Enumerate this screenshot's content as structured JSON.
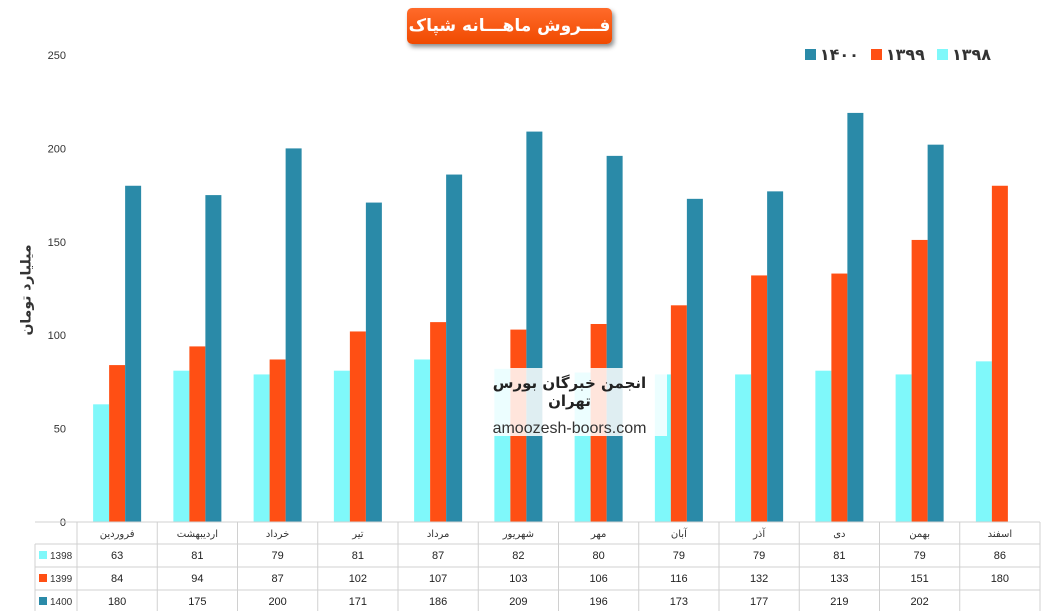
{
  "title": "فـــروش ماهـــانه شپاک",
  "watermark": {
    "title": "انجمن خبرگان بورس تهران",
    "site": "amoozesh-boors.com"
  },
  "colors": {
    "1398": "#7ff8fa",
    "1399": "#ff4f14",
    "1400": "#2a8aa8",
    "title_bg": "#f25100"
  },
  "chart_data": {
    "type": "bar",
    "title": "فـــروش ماهـــانه شپاک",
    "ylabel": "میلیارد تومان",
    "xlabel": "",
    "ylim": [
      0,
      250
    ],
    "yticks": [
      0,
      50,
      100,
      150,
      200,
      250
    ],
    "legend_position": "top-right",
    "grid": false,
    "legend_order": [
      "1400",
      "1399",
      "1398"
    ],
    "legend_labels": {
      "1398": "۱۳۹۸",
      "1399": "۱۳۹۹",
      "1400": "۱۴۰۰"
    },
    "categories": [
      "فروردین",
      "اردیبهشت",
      "خرداد",
      "تیر",
      "مرداد",
      "شهریور",
      "مهر",
      "آبان",
      "آذر",
      "دی",
      "بهمن",
      "اسفند"
    ],
    "series": [
      {
        "name": "1398",
        "values": [
          63,
          81,
          79,
          81,
          87,
          82,
          80,
          79,
          79,
          81,
          79,
          86
        ]
      },
      {
        "name": "1399",
        "values": [
          84,
          94,
          87,
          102,
          107,
          103,
          106,
          116,
          132,
          133,
          151,
          180
        ]
      },
      {
        "name": "1400",
        "values": [
          180,
          175,
          200,
          171,
          186,
          209,
          196,
          173,
          177,
          219,
          202,
          null
        ]
      }
    ]
  }
}
